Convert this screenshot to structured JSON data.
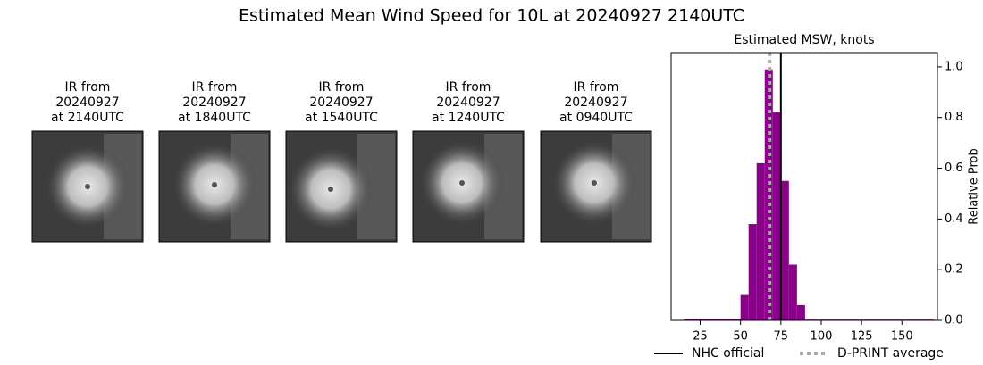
{
  "title": "Estimated Mean Wind Speed for 10L at 20240927 2140UTC",
  "panels": [
    {
      "lines": [
        "IR from",
        "20240927",
        "at 2140UTC"
      ]
    },
    {
      "lines": [
        "IR from",
        "20240927",
        "at 1840UTC"
      ]
    },
    {
      "lines": [
        "IR from",
        "20240927",
        "at 1540UTC"
      ]
    },
    {
      "lines": [
        "IR from",
        "20240927",
        "at 1240UTC"
      ]
    },
    {
      "lines": [
        "IR from",
        "20240927",
        "at 0940UTC"
      ]
    }
  ],
  "chart_data": {
    "type": "histogram",
    "title": "Estimated MSW, knots",
    "y_label": "Relative Prob",
    "bins": [
      15,
      20,
      25,
      30,
      35,
      40,
      45,
      50,
      55,
      60,
      65,
      70,
      75,
      80,
      85,
      90,
      95,
      100,
      105,
      110,
      115,
      120,
      125,
      130,
      135,
      140,
      145,
      150,
      155,
      160,
      165,
      170
    ],
    "values": [
      0.005,
      0.005,
      0.005,
      0.005,
      0.005,
      0.005,
      0.005,
      0.1,
      0.38,
      0.62,
      0.99,
      0.82,
      0.55,
      0.22,
      0.06,
      0.003,
      0.003,
      0.003,
      0.003,
      0.003,
      0.003,
      0.003,
      0.003,
      0.003,
      0.003,
      0.003,
      0.003,
      0.003,
      0.003,
      0.003,
      0.003
    ],
    "color": "#8b008b",
    "xlim": [
      7,
      172
    ],
    "xticks": [
      25,
      50,
      75,
      100,
      125,
      150
    ],
    "ylim": [
      0,
      1.056
    ],
    "yticks": [
      {
        "value": 0,
        "label": "0.0"
      },
      0.2,
      0.4,
      0.6,
      0.8,
      {
        "value": 1,
        "label": "1.0"
      }
    ],
    "y_axis_side": "right",
    "vlines": [
      {
        "name": "NHC official",
        "value": 75,
        "color": "#000000",
        "style": "solid"
      },
      {
        "name": "D-PRINT average",
        "value": 68,
        "color": "#aaaaaa",
        "style": "dotted"
      }
    ]
  }
}
